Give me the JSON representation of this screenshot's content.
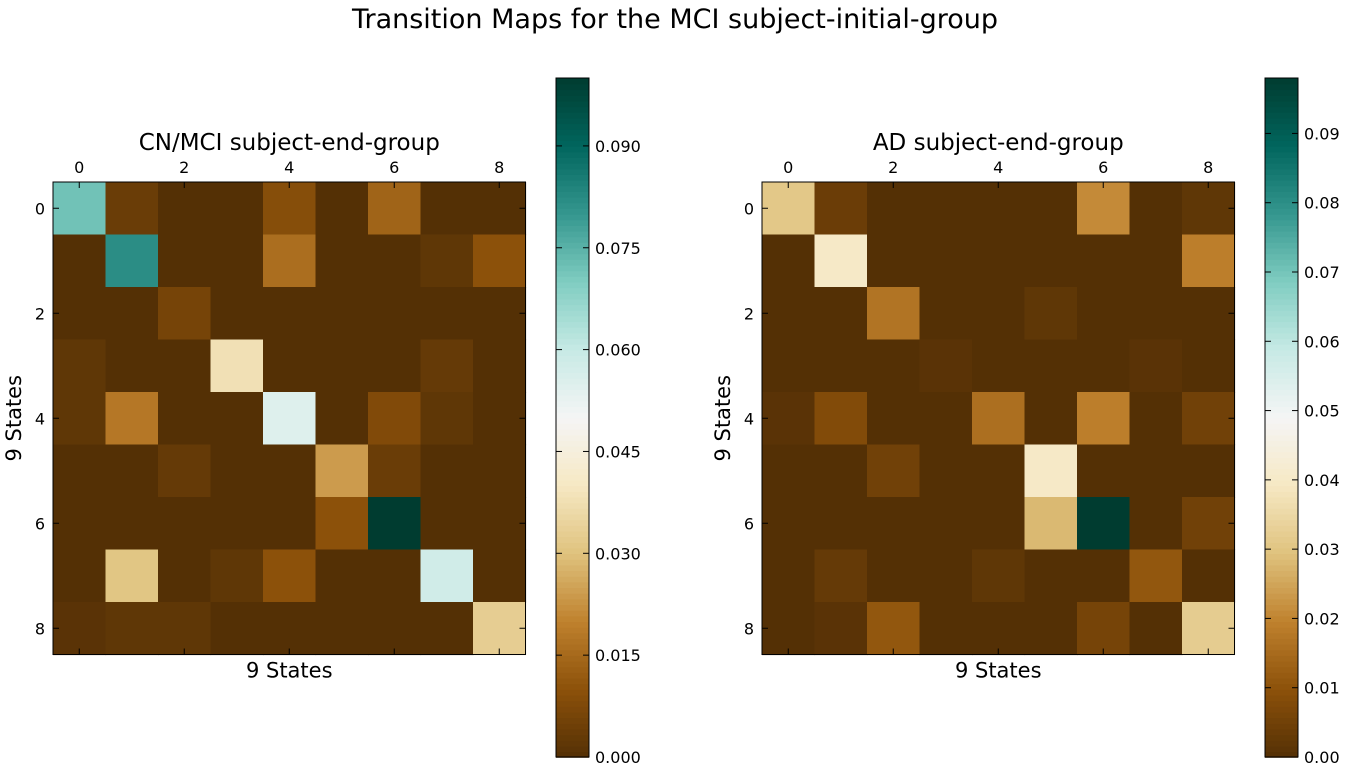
{
  "suptitle": "Transition Maps for the MCI subject-initial-group",
  "chart_data": [
    {
      "type": "heatmap",
      "title": "CN/MCI subject-end-group",
      "xlabel": "9 States",
      "ylabel": "9 States",
      "x_ticks": [
        0,
        2,
        4,
        6,
        8
      ],
      "y_ticks": [
        0,
        2,
        4,
        6,
        8
      ],
      "colormap": "BrBG",
      "vmin": 0.0,
      "vmax": 0.1,
      "colorbar_ticks": [
        "0.000",
        "0.015",
        "0.030",
        "0.045",
        "0.060",
        "0.075",
        "0.090"
      ],
      "values": [
        [
          0.072,
          0.004,
          0.0,
          0.0,
          0.009,
          0.0,
          0.014,
          0.0,
          0.0
        ],
        [
          0.0,
          0.082,
          0.0,
          0.0,
          0.016,
          0.0,
          0.0,
          0.002,
          0.01
        ],
        [
          0.0,
          0.0,
          0.006,
          0.0,
          0.0,
          0.0,
          0.0,
          0.0,
          0.0
        ],
        [
          0.002,
          0.0,
          0.0,
          0.038,
          0.0,
          0.0,
          0.0,
          0.003,
          0.0
        ],
        [
          0.002,
          0.018,
          0.0,
          0.0,
          0.055,
          0.0,
          0.008,
          0.002,
          0.0
        ],
        [
          0.0,
          0.0,
          0.003,
          0.0,
          0.0,
          0.024,
          0.004,
          0.0,
          0.0
        ],
        [
          0.0,
          0.0,
          0.0,
          0.0,
          0.0,
          0.01,
          0.1,
          0.0,
          0.0
        ],
        [
          0.0,
          0.031,
          0.0,
          0.002,
          0.01,
          0.0,
          0.0,
          0.058,
          0.0
        ],
        [
          0.001,
          0.002,
          0.002,
          0.0,
          0.0,
          0.0,
          0.0,
          0.0,
          0.033
        ]
      ]
    },
    {
      "type": "heatmap",
      "title": "AD subject-end-group",
      "xlabel": "9 States",
      "ylabel": "9 States",
      "x_ticks": [
        0,
        2,
        4,
        6,
        8
      ],
      "y_ticks": [
        0,
        2,
        4,
        6,
        8
      ],
      "colormap": "BrBG",
      "vmin": 0.0,
      "vmax": 0.098,
      "colorbar_ticks": [
        "0.00",
        "0.01",
        "0.02",
        "0.03",
        "0.04",
        "0.05",
        "0.06",
        "0.07",
        "0.08",
        "0.09"
      ],
      "values": [
        [
          0.031,
          0.004,
          0.0,
          0.0,
          0.0,
          0.0,
          0.021,
          0.0,
          0.002
        ],
        [
          0.0,
          0.04,
          0.0,
          0.0,
          0.0,
          0.0,
          0.0,
          0.0,
          0.019
        ],
        [
          0.0,
          0.0,
          0.017,
          0.0,
          0.0,
          0.002,
          0.0,
          0.0,
          0.0
        ],
        [
          0.0,
          0.0,
          0.0,
          0.001,
          0.0,
          0.0,
          0.0,
          0.001,
          0.0
        ],
        [
          0.001,
          0.008,
          0.0,
          0.0,
          0.016,
          0.0,
          0.019,
          0.0,
          0.005
        ],
        [
          0.0,
          0.0,
          0.005,
          0.0,
          0.0,
          0.04,
          0.0,
          0.0,
          0.0
        ],
        [
          0.0,
          0.0,
          0.0,
          0.0,
          0.0,
          0.028,
          0.098,
          0.0,
          0.005
        ],
        [
          0.0,
          0.003,
          0.0,
          0.0,
          0.002,
          0.0,
          0.0,
          0.011,
          0.0
        ],
        [
          0.0,
          0.001,
          0.011,
          0.0,
          0.0,
          0.0,
          0.006,
          0.0,
          0.032
        ]
      ]
    }
  ]
}
